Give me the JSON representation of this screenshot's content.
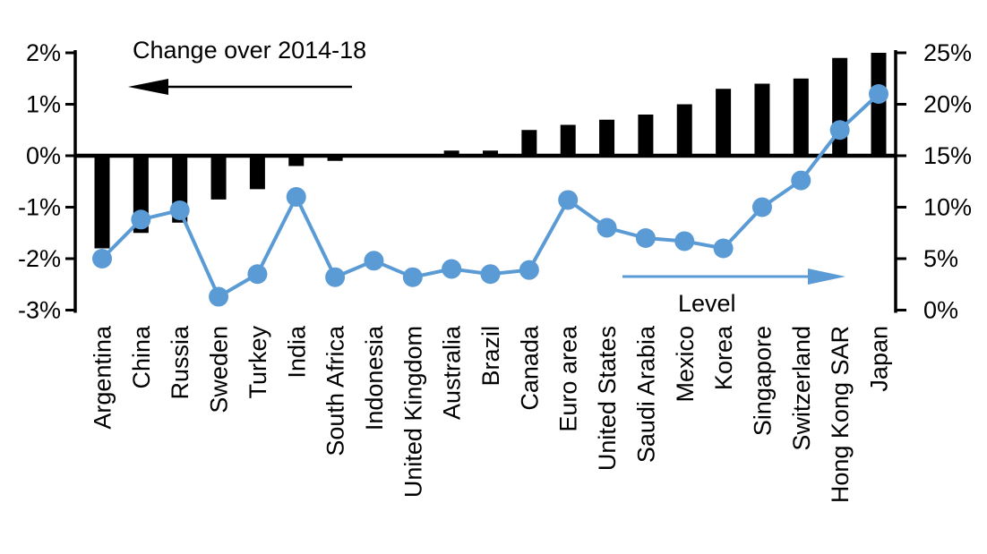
{
  "chart_data": {
    "type": "bar",
    "subtype": "dual-axis combo: bars (left axis) + line with markers (right axis)",
    "title": "",
    "categories": [
      "Argentina",
      "China",
      "Russia",
      "Sweden",
      "Turkey",
      "India",
      "South Africa",
      "Indonesia",
      "United Kingdom",
      "Australia",
      "Brazil",
      "Canada",
      "Euro area",
      "United States",
      "Saudi Arabia",
      "Mexico",
      "Korea",
      "Singapore",
      "Switzerland",
      "Hong Kong SAR",
      "Japan"
    ],
    "series": [
      {
        "name": "Change over 2014-18",
        "type": "bar",
        "axis": "left",
        "color": "#000000",
        "values": [
          -1.8,
          -1.5,
          -1.3,
          -0.85,
          -0.65,
          -0.2,
          -0.1,
          0,
          0,
          0.1,
          0.1,
          0.5,
          0.6,
          0.7,
          0.8,
          1.0,
          1.3,
          1.4,
          1.5,
          1.9,
          2.0
        ]
      },
      {
        "name": "Level",
        "type": "line",
        "axis": "right",
        "color": "#5B9BD5",
        "values": [
          5,
          8.8,
          9.7,
          1.3,
          3.5,
          11,
          3.2,
          4.8,
          3.2,
          4,
          3.5,
          3.9,
          10.7,
          8,
          7,
          6.7,
          6,
          10,
          12.6,
          17.5,
          21
        ]
      }
    ],
    "left_axis": {
      "tick_labels": [
        "2%",
        "1%",
        "0%",
        "-1%",
        "-2%",
        "-3%"
      ],
      "tick_values": [
        2,
        1,
        0,
        -1,
        -2,
        -3
      ],
      "min": -3,
      "max": 2
    },
    "right_axis": {
      "tick_labels": [
        "25%",
        "20%",
        "15%",
        "10%",
        "5%",
        "0%"
      ],
      "tick_values": [
        25,
        20,
        15,
        10,
        5,
        0
      ],
      "min": 0,
      "max": 25
    },
    "annotations": {
      "bar_series_label": "Change over 2014-18",
      "line_series_label": "Level"
    },
    "grid": false,
    "legend_position": "in-plot annotations with directional arrows"
  },
  "colors": {
    "bar": "#000000",
    "line": "#5B9BD5",
    "text": "#000000",
    "background": "#FFFFFF"
  }
}
